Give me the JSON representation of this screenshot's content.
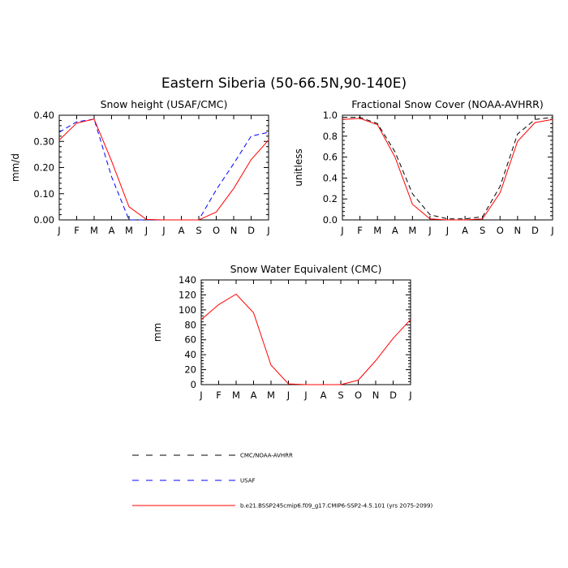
{
  "figure": {
    "title": "Eastern Siberia (50-66.5N,90-140E)"
  },
  "legend": [
    {
      "name": "CMC/NOAA-AVHRR",
      "color": "#000000",
      "dash": "dashed"
    },
    {
      "name": "USAF",
      "color": "#0000ff",
      "dash": "dashed"
    },
    {
      "name": "b.e21.BSSP245cmip6.f09_g17.CMIP6-SSP2-4.5.101 (yrs 2075-2099)",
      "color": "#ff0000",
      "dash": "solid"
    }
  ],
  "chart_data": [
    {
      "type": "line",
      "title": "Snow height (USAF/CMC)",
      "xlabel": "",
      "ylabel": "mm/d",
      "categories": [
        "J",
        "F",
        "M",
        "A",
        "M",
        "J",
        "J",
        "A",
        "S",
        "O",
        "N",
        "D",
        "J"
      ],
      "ylim": [
        0,
        0.4
      ],
      "yticks": [
        "0.00",
        "0.10",
        "0.20",
        "0.30",
        "0.40"
      ],
      "grid": false,
      "series": [
        {
          "name": "CMC/NOAA-AVHRR",
          "color": "#000000",
          "dash": "dashed",
          "values": [
            0,
            0,
            0,
            0,
            0,
            0,
            0,
            0,
            0,
            0,
            0,
            0,
            0
          ]
        },
        {
          "name": "USAF",
          "color": "#0000ff",
          "dash": "dashed",
          "values": [
            0.335,
            0.375,
            0.385,
            0.165,
            0.0,
            0.0,
            0.0,
            0.0,
            0.0,
            0.115,
            0.215,
            0.32,
            0.335
          ]
        },
        {
          "name": "b.e21.BSSP245cmip6.f09_g17.CMIP6-SSP2-4.5.101 (yrs 2075-2099)",
          "color": "#ff0000",
          "dash": "solid",
          "values": [
            0.305,
            0.37,
            0.385,
            0.225,
            0.05,
            0.002,
            0.0,
            0.0,
            0.0,
            0.03,
            0.12,
            0.23,
            0.305
          ]
        }
      ]
    },
    {
      "type": "line",
      "title": "Fractional Snow Cover (NOAA-AVHRR)",
      "xlabel": "",
      "ylabel": "unitless",
      "categories": [
        "J",
        "F",
        "M",
        "A",
        "M",
        "J",
        "J",
        "A",
        "S",
        "O",
        "N",
        "D",
        "J"
      ],
      "ylim": [
        0,
        1.0
      ],
      "yticks": [
        "0.0",
        "0.2",
        "0.4",
        "0.6",
        "0.8",
        "1.0"
      ],
      "grid": false,
      "series": [
        {
          "name": "CMC/NOAA-AVHRR",
          "color": "#000000",
          "dash": "dashed",
          "values": [
            0.98,
            0.98,
            0.92,
            0.65,
            0.25,
            0.05,
            0.01,
            0.01,
            0.03,
            0.32,
            0.82,
            0.96,
            0.98
          ]
        },
        {
          "name": "b.e21.BSSP245cmip6.f09_g17.CMIP6-SSP2-4.5.101 (yrs 2075-2099)",
          "color": "#ff0000",
          "dash": "solid",
          "values": [
            0.96,
            0.97,
            0.91,
            0.6,
            0.15,
            0.01,
            0.0,
            0.0,
            0.01,
            0.26,
            0.75,
            0.93,
            0.96
          ]
        }
      ]
    },
    {
      "type": "line",
      "title": "Snow Water Equivalent (CMC)",
      "xlabel": "",
      "ylabel": "mm",
      "categories": [
        "J",
        "F",
        "M",
        "A",
        "M",
        "J",
        "J",
        "A",
        "S",
        "O",
        "N",
        "D",
        "J"
      ],
      "ylim": [
        0,
        140
      ],
      "yticks": [
        "0",
        "20",
        "40",
        "60",
        "80",
        "100",
        "120",
        "140"
      ],
      "grid": false,
      "series": [
        {
          "name": "CMC/NOAA-AVHRR",
          "color": "#000000",
          "dash": "dashed",
          "values": [
            0,
            0,
            0,
            0,
            0,
            0,
            0,
            0,
            0,
            0,
            0,
            0,
            0
          ]
        },
        {
          "name": "b.e21.BSSP245cmip6.f09_g17.CMIP6-SSP2-4.5.101 (yrs 2075-2099)",
          "color": "#ff0000",
          "dash": "solid",
          "values": [
            87,
            107,
            121,
            96,
            26,
            1,
            0,
            0,
            0,
            6,
            32,
            62,
            87
          ]
        }
      ]
    }
  ]
}
